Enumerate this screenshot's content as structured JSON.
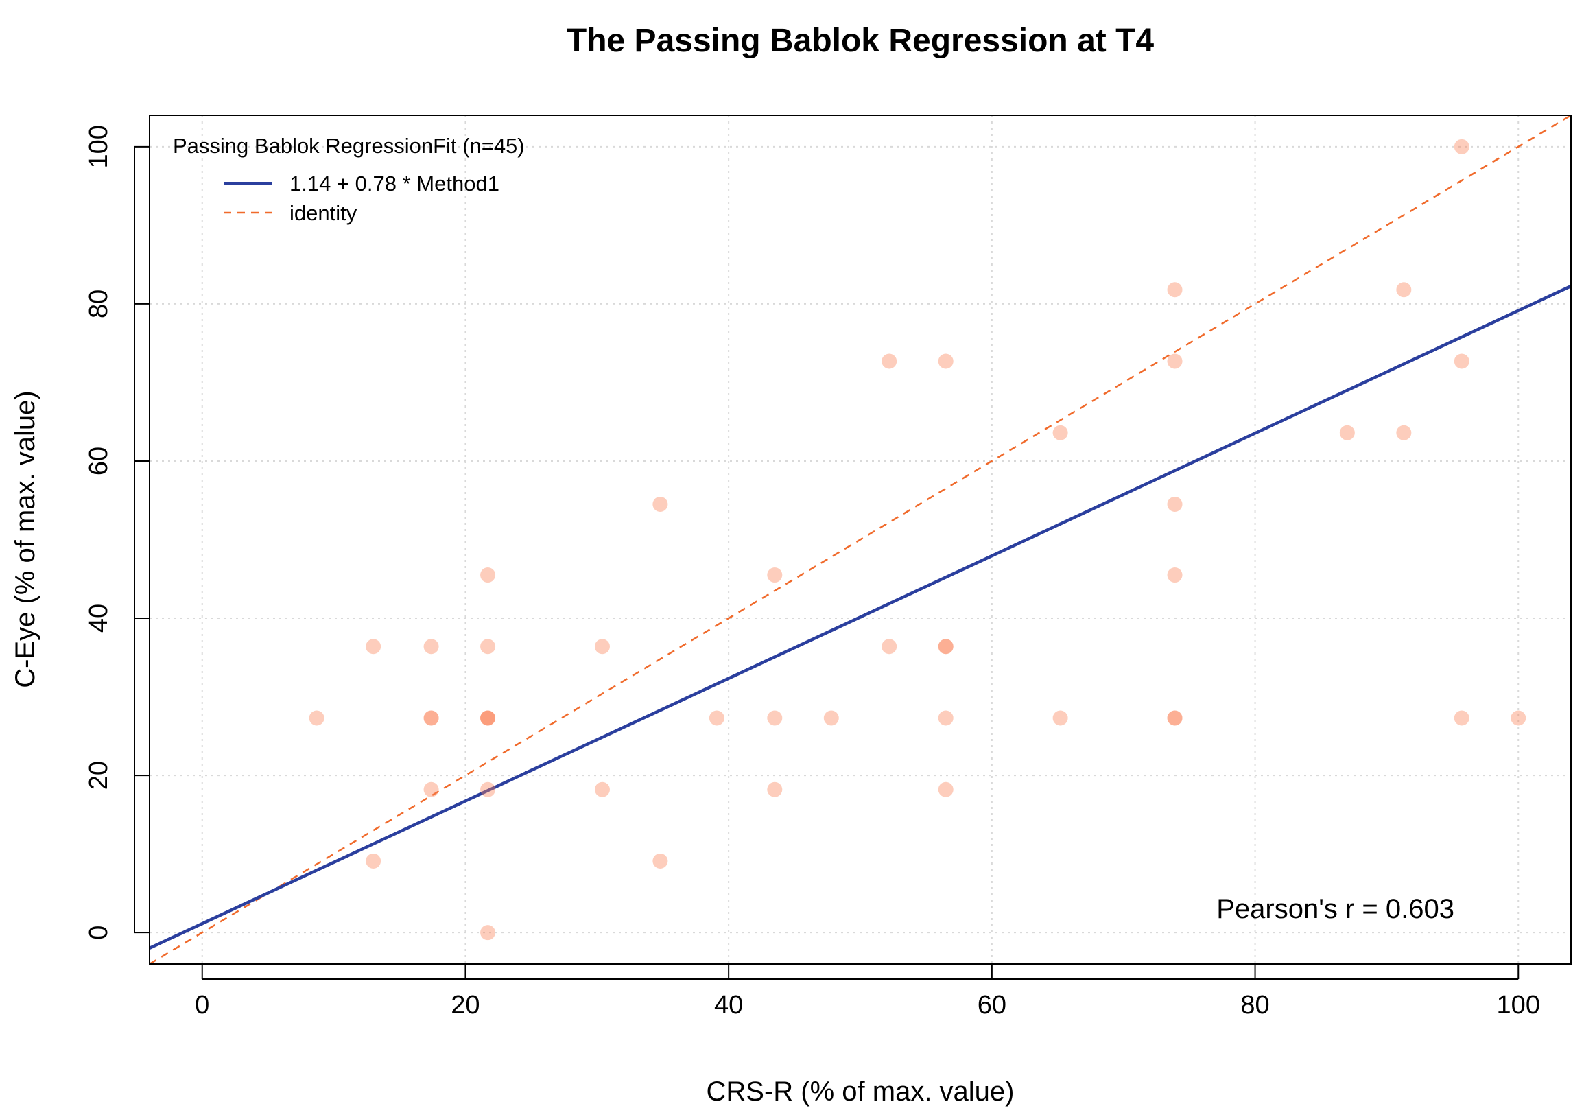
{
  "chart_data": {
    "type": "scatter",
    "title": "The Passing Bablok Regression at T4",
    "xlabel": "CRS-R (% of max. value)",
    "ylabel": "C-Eye (% of max. value)",
    "xlim": [
      -4,
      104
    ],
    "ylim": [
      -4,
      104
    ],
    "xticks": [
      "0",
      "20",
      "40",
      "60",
      "80",
      "100"
    ],
    "yticks": [
      "0",
      "20",
      "40",
      "60",
      "80",
      "100"
    ],
    "grid": true,
    "legend": {
      "placement": "top-left",
      "title": "Passing Bablok RegressionFit (n=45)",
      "entries": [
        "1.14 + 0.78 * Method1",
        "identity"
      ]
    },
    "annotation": "Pearson's r = 0.603",
    "colors": {
      "points": "#fa8258",
      "regression": "#2b3f9e",
      "identity": "#f06a2b",
      "grid": "#d9d9d9"
    },
    "regression": {
      "intercept": 1.14,
      "slope": 0.78
    },
    "identity": {
      "intercept": 0,
      "slope": 1
    },
    "series": [
      {
        "x": [
          8.7,
          13.0,
          13.0,
          17.4,
          17.4,
          17.4,
          17.4,
          21.7,
          21.7,
          21.7,
          21.7,
          21.7,
          21.7,
          21.7,
          30.4,
          30.4,
          34.8,
          34.8,
          39.1,
          43.5,
          43.5,
          43.5,
          47.8,
          52.2,
          52.2,
          56.5,
          56.5,
          56.5,
          56.5,
          56.5,
          65.2,
          65.2,
          73.9,
          73.9,
          73.9,
          73.9,
          73.9,
          73.9,
          87.0,
          91.3,
          91.3,
          95.7,
          95.7,
          95.7,
          100.0
        ],
        "y": [
          27.3,
          36.4,
          9.1,
          36.4,
          27.3,
          27.3,
          18.2,
          45.5,
          36.4,
          27.3,
          27.3,
          27.3,
          18.2,
          0.0,
          36.4,
          18.2,
          54.5,
          9.1,
          27.3,
          45.5,
          27.3,
          18.2,
          27.3,
          72.7,
          36.4,
          72.7,
          36.4,
          36.4,
          27.3,
          18.2,
          63.6,
          27.3,
          81.8,
          72.7,
          54.5,
          45.5,
          27.3,
          27.3,
          63.6,
          81.8,
          63.6,
          100.0,
          72.7,
          27.3,
          27.3
        ]
      }
    ]
  }
}
